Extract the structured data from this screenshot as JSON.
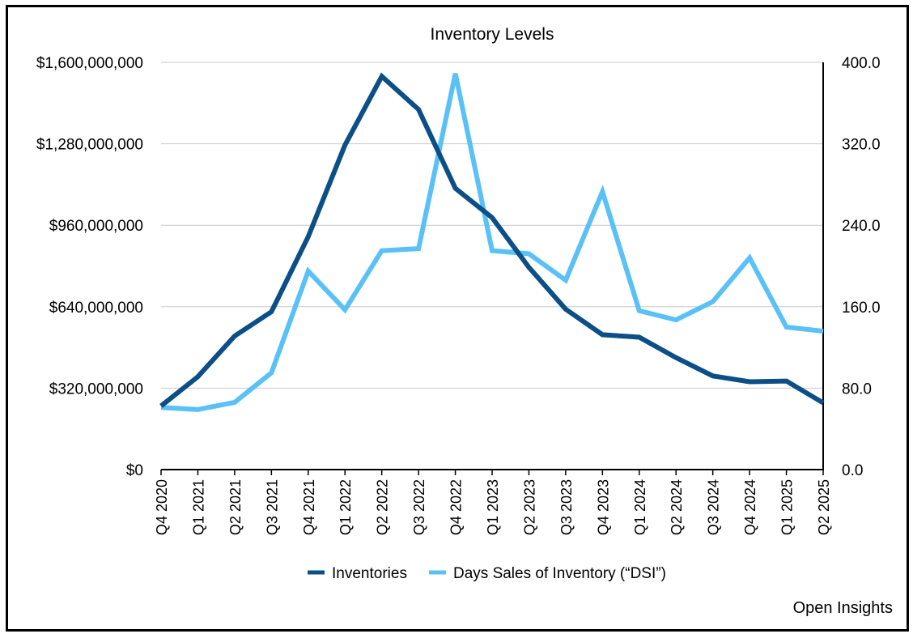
{
  "chart_data": {
    "type": "line",
    "title": "Inventory Levels",
    "categories": [
      "Q4 2020",
      "Q1 2021",
      "Q2 2021",
      "Q3 2021",
      "Q4 2021",
      "Q1 2022",
      "Q2 2022",
      "Q3 2022",
      "Q4 2022",
      "Q1 2023",
      "Q2 2023",
      "Q3 2023",
      "Q4 2023",
      "Q1 2024",
      "Q2 2024",
      "Q3 2024",
      "Q4 2024",
      "Q1 2025",
      "Q2 2025"
    ],
    "left_axis": {
      "ylim": [
        0,
        1600000000
      ],
      "tick_labels": [
        "$0",
        "$320,000,000",
        "$640,000,000",
        "$960,000,000",
        "$1,280,000,000",
        "$1,600,000,000"
      ]
    },
    "right_axis": {
      "ylim": [
        0,
        400
      ],
      "tick_labels": [
        "0.0",
        "80.0",
        "160.0",
        "240.0",
        "320.0",
        "400.0"
      ]
    },
    "grid": true,
    "legend_position": "bottom",
    "series": [
      {
        "name": "Inventories",
        "axis": "left",
        "color": "#0b4f86",
        "values": [
          250000000,
          365000000,
          525000000,
          620000000,
          915000000,
          1275000000,
          1545000000,
          1415000000,
          1105000000,
          990000000,
          795000000,
          630000000,
          530000000,
          520000000,
          440000000,
          368000000,
          345000000,
          348000000,
          262000000
        ]
      },
      {
        "name": "Days Sales of Inventory (“DSI”)",
        "axis": "right",
        "color": "#5ac1f7",
        "values": [
          61,
          59,
          66,
          95,
          195,
          157,
          215,
          217,
          389,
          215,
          212,
          186,
          273,
          156,
          147,
          165,
          208,
          140,
          136
        ]
      }
    ]
  },
  "footer": {
    "source_label": "Open Insights"
  }
}
